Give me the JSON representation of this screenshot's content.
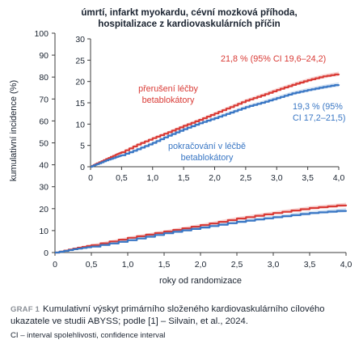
{
  "chart_data": [
    {
      "type": "line",
      "title": "úmrtí, infarkt myokardu, cévní mozková příhoda,\nhospitalizace z kardiovaskulárních příčin",
      "xlabel": "roky od randomizace",
      "ylabel": "kumulativní incidence (%)",
      "xlim": [
        0,
        4
      ],
      "ylim": [
        0,
        100
      ],
      "xticks": [
        0,
        0.5,
        1,
        1.5,
        2,
        2.5,
        3,
        3.5,
        4
      ],
      "xtick_labels": [
        "0",
        "0,5",
        "1,0",
        "1,5",
        "2,0",
        "2,5",
        "3,0",
        "3,5",
        "4,0"
      ],
      "yticks": [
        0,
        10,
        20,
        30,
        40,
        50,
        60,
        70,
        80,
        90,
        100
      ],
      "series": [
        {
          "name": "přerušení léčby betablokátory",
          "color": "#d93a35",
          "x": [
            0,
            0.25,
            0.5,
            1.0,
            1.5,
            2.0,
            2.5,
            3.0,
            3.5,
            4.0
          ],
          "y": [
            0,
            1.8,
            3.4,
            6.7,
            9.6,
            12.5,
            15.5,
            18.0,
            20.3,
            21.8
          ]
        },
        {
          "name": "pokračování v léčbě betablokátory",
          "color": "#3876c4",
          "x": [
            0,
            0.25,
            0.5,
            1.0,
            1.5,
            2.0,
            2.5,
            3.0,
            3.5,
            4.0
          ],
          "y": [
            0,
            1.5,
            2.7,
            5.6,
            8.8,
            11.4,
            14.0,
            16.1,
            18.0,
            19.3
          ]
        }
      ]
    },
    {
      "type": "line",
      "inset": true,
      "xlim": [
        0,
        4
      ],
      "ylim": [
        0,
        30
      ],
      "xticks": [
        0,
        0.5,
        1,
        1.5,
        2,
        2.5,
        3,
        3.5,
        4
      ],
      "xtick_labels": [
        "0",
        "0,5",
        "1,0",
        "1,5",
        "2,0",
        "2,5",
        "3,0",
        "3,5",
        "4,0"
      ],
      "yticks": [
        0,
        5,
        10,
        15,
        20,
        25,
        30
      ],
      "series": [
        {
          "name": "přerušení léčby betablokátory",
          "color": "#d93a35",
          "x": [
            0,
            0.1,
            0.25,
            0.4,
            0.5,
            0.75,
            1.0,
            1.25,
            1.5,
            1.75,
            2.0,
            2.25,
            2.5,
            2.75,
            3.0,
            3.25,
            3.5,
            3.75,
            4.0
          ],
          "y": [
            0,
            0.8,
            1.8,
            2.8,
            3.4,
            5.2,
            6.7,
            8.1,
            9.6,
            11.0,
            12.5,
            14.0,
            15.5,
            16.7,
            18.0,
            19.2,
            20.3,
            21.2,
            21.8
          ]
        },
        {
          "name": "pokračování v léčbě betablokátory",
          "color": "#3876c4",
          "x": [
            0,
            0.1,
            0.25,
            0.4,
            0.5,
            0.75,
            1.0,
            1.25,
            1.5,
            1.75,
            2.0,
            2.25,
            2.5,
            2.75,
            3.0,
            3.25,
            3.5,
            3.75,
            4.0
          ],
          "y": [
            0,
            0.6,
            1.5,
            2.2,
            2.7,
            4.1,
            5.6,
            7.3,
            8.8,
            10.2,
            11.4,
            12.7,
            14.0,
            15.0,
            16.1,
            17.2,
            18.0,
            18.7,
            19.3
          ]
        }
      ],
      "annotations": [
        {
          "text": "21,8 % (95% CI 19,6–24,2)",
          "color": "#d93a35"
        },
        {
          "text": "přerušení léčby\nbetablokátory",
          "color": "#d93a35"
        },
        {
          "text": "19,3 % (95%\nCI 17,2–21,5)",
          "color": "#3876c4"
        },
        {
          "text": "pokračování v léčbě\nbetablokátory",
          "color": "#3876c4"
        }
      ]
    }
  ],
  "caption": {
    "label": "GRAF 1",
    "text": "Kumulativní výskyt primárního složeného kardiovaskulárního cílového ukazatele ve studii ABYSS; podle [1] – Silvain, et al., 2024.",
    "note": "CI – interval spolehlivosti, confidence interval"
  }
}
